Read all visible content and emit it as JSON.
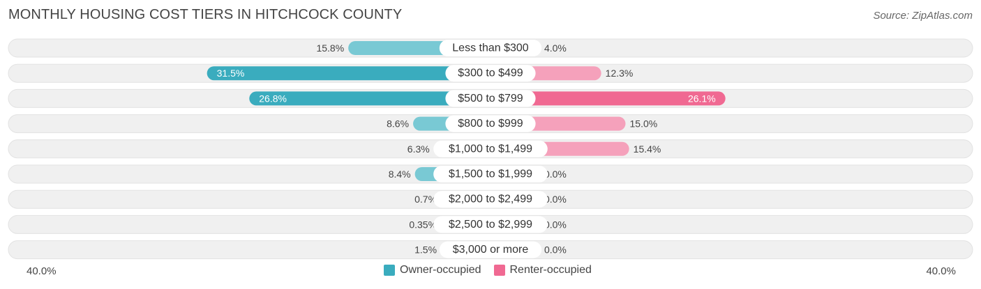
{
  "title": "MONTHLY HOUSING COST TIERS IN HITCHCOCK COUNTY",
  "source": "Source: ZipAtlas.com",
  "colors": {
    "owner": "#3aacbe",
    "owner_light": "#79c9d4",
    "renter": "#f06992",
    "renter_light": "#f5a1bb",
    "row_bg": "#f0f0f0"
  },
  "chart_data": {
    "type": "bar",
    "orientation": "horizontal-diverging",
    "title": "MONTHLY HOUSING COST TIERS IN HITCHCOCK COUNTY",
    "categories": [
      "Less than $300",
      "$300 to $499",
      "$500 to $799",
      "$800 to $999",
      "$1,000 to $1,499",
      "$1,500 to $1,999",
      "$2,000 to $2,499",
      "$2,500 to $2,999",
      "$3,000 or more"
    ],
    "series": [
      {
        "name": "Owner-occupied",
        "values": [
          15.8,
          31.5,
          26.8,
          8.6,
          6.3,
          8.4,
          0.7,
          0.35,
          1.5
        ],
        "labels": [
          "15.8%",
          "31.5%",
          "26.8%",
          "8.6%",
          "6.3%",
          "8.4%",
          "0.7%",
          "0.35%",
          "1.5%"
        ]
      },
      {
        "name": "Renter-occupied",
        "values": [
          4.0,
          12.3,
          26.1,
          15.0,
          15.4,
          0.0,
          0.0,
          0.0,
          0.0
        ],
        "labels": [
          "4.0%",
          "12.3%",
          "26.1%",
          "15.0%",
          "15.4%",
          "0.0%",
          "0.0%",
          "0.0%",
          "0.0%"
        ]
      }
    ],
    "xlim": [
      -40,
      40
    ],
    "axis_left_label": "40.0%",
    "axis_right_label": "40.0%",
    "legend_position": "bottom-center"
  },
  "legend": {
    "owner_label": "Owner-occupied",
    "renter_label": "Renter-occupied"
  }
}
